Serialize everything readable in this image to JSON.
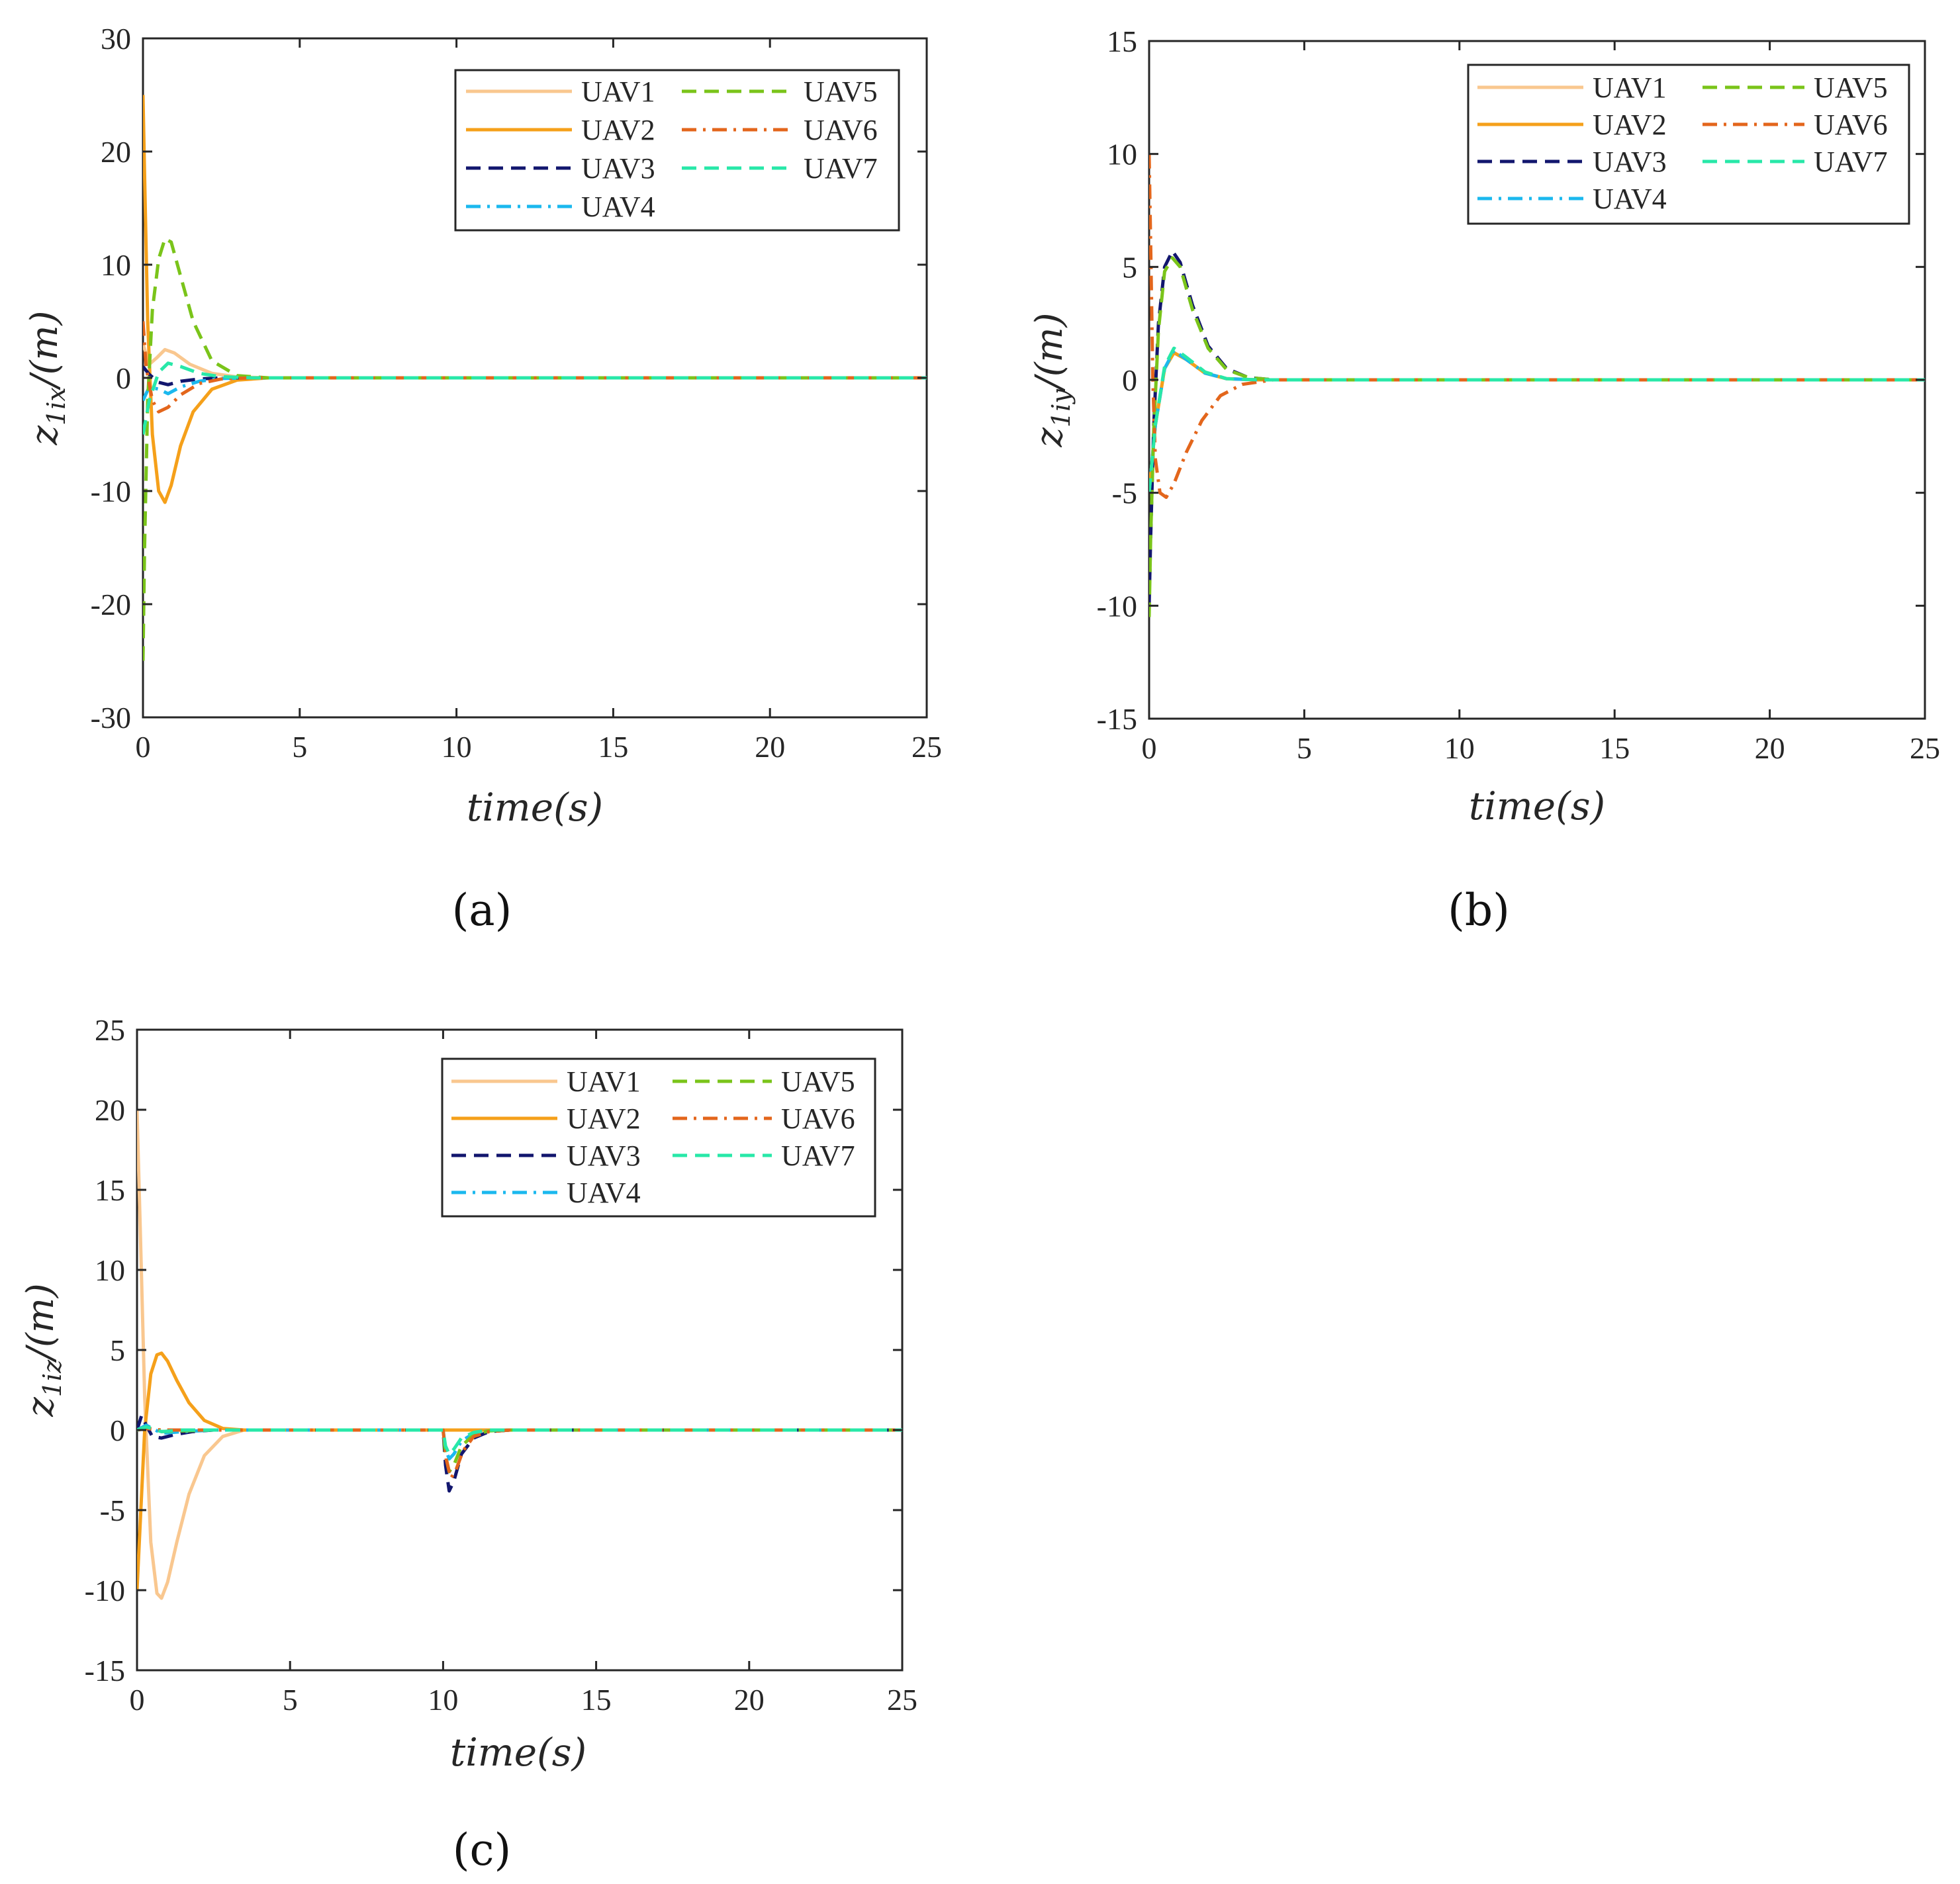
{
  "legend_entries": [
    "UAV1",
    "UAV2",
    "UAV3",
    "UAV4",
    "UAV5",
    "UAV6",
    "UAV7"
  ],
  "series_styles": [
    {
      "name": "UAV1",
      "color": "#f9c78f",
      "dash": "solid"
    },
    {
      "name": "UAV2",
      "color": "#f5a01a",
      "dash": "solid"
    },
    {
      "name": "UAV3",
      "color": "#12166e",
      "dash": "dash"
    },
    {
      "name": "UAV4",
      "color": "#1bb8ee",
      "dash": "dashdot"
    },
    {
      "name": "UAV5",
      "color": "#7ac41a",
      "dash": "dash"
    },
    {
      "name": "UAV6",
      "color": "#e3661c",
      "dash": "dashdot"
    },
    {
      "name": "UAV7",
      "color": "#28e8a8",
      "dash": "dash"
    }
  ],
  "chart_data": [
    {
      "id": "a",
      "type": "line",
      "caption": "(a)",
      "xlabel": "time(s)",
      "ylabel_base": "z",
      "ylabel_sub": "1ix",
      "ylabel_tail": "/(m)",
      "xlim": [
        0,
        25
      ],
      "ylim": [
        -30,
        30
      ],
      "xticks": [
        0,
        5,
        10,
        15,
        20,
        25
      ],
      "yticks": [
        -30,
        -20,
        -10,
        0,
        10,
        20,
        30
      ],
      "legend_position": "top-right",
      "grid": false,
      "series": [
        {
          "name": "UAV1",
          "x": [
            0,
            0.2,
            0.45,
            0.7,
            1.0,
            1.5,
            2.2,
            3.0,
            4.0,
            25
          ],
          "y": [
            3,
            1.2,
            1.8,
            2.5,
            2.2,
            1.2,
            0.4,
            0.08,
            0,
            0
          ]
        },
        {
          "name": "UAV2",
          "x": [
            0,
            0.05,
            0.15,
            0.3,
            0.5,
            0.7,
            0.9,
            1.2,
            1.6,
            2.2,
            3.0,
            4.0,
            25
          ],
          "y": [
            25,
            18,
            5,
            -5,
            -10,
            -11,
            -9.5,
            -6,
            -3,
            -1,
            -0.2,
            0,
            0
          ]
        },
        {
          "name": "UAV3",
          "x": [
            0,
            0.2,
            0.5,
            0.8,
            1.2,
            1.8,
            2.5,
            3.5,
            25
          ],
          "y": [
            1,
            0.3,
            -0.4,
            -0.6,
            -0.3,
            -0.1,
            0,
            0,
            0
          ]
        },
        {
          "name": "UAV4",
          "x": [
            0,
            0.2,
            0.5,
            0.8,
            1.2,
            1.8,
            2.5,
            3.5,
            25
          ],
          "y": [
            -2,
            -0.8,
            -1,
            -1.4,
            -0.8,
            -0.3,
            -0.05,
            0,
            0
          ]
        },
        {
          "name": "UAV5",
          "x": [
            0,
            0.05,
            0.15,
            0.3,
            0.5,
            0.7,
            0.9,
            1.2,
            1.6,
            2.2,
            3.0,
            4.0,
            25
          ],
          "y": [
            -25,
            -15,
            -2,
            6,
            10.5,
            12.3,
            12,
            9,
            5,
            1.5,
            0.2,
            0,
            0
          ]
        },
        {
          "name": "UAV6",
          "x": [
            0,
            0.1,
            0.3,
            0.5,
            0.8,
            1.2,
            1.8,
            2.5,
            3.5,
            25
          ],
          "y": [
            5,
            1,
            -2,
            -3,
            -2.6,
            -1.5,
            -0.5,
            -0.1,
            0,
            0
          ]
        },
        {
          "name": "UAV7",
          "x": [
            0,
            0.2,
            0.5,
            0.8,
            1.2,
            1.8,
            2.5,
            3.5,
            25
          ],
          "y": [
            -5,
            -2,
            0.5,
            1.3,
            1.0,
            0.4,
            0.1,
            0,
            0
          ]
        }
      ]
    },
    {
      "id": "b",
      "type": "line",
      "caption": "(b)",
      "xlabel": "time(s)",
      "ylabel_base": "z",
      "ylabel_sub": "1iy",
      "ylabel_tail": "/(m)",
      "xlim": [
        0,
        25
      ],
      "ylim": [
        -15,
        15
      ],
      "xticks": [
        0,
        5,
        10,
        15,
        20,
        25
      ],
      "yticks": [
        -15,
        -10,
        -5,
        0,
        5,
        10,
        15
      ],
      "legend_position": "top-right",
      "grid": false,
      "series": [
        {
          "name": "UAV1",
          "x": [
            0,
            0.2,
            0.5,
            0.8,
            1.2,
            1.8,
            2.5,
            3.5,
            25
          ],
          "y": [
            -5,
            -2,
            0.5,
            1.2,
            0.9,
            0.3,
            0.05,
            0,
            0
          ]
        },
        {
          "name": "UAV2",
          "x": [
            0,
            0.2,
            0.5,
            0.8,
            1.2,
            1.8,
            2.5,
            3.5,
            25
          ],
          "y": [
            -5,
            -2,
            0.5,
            1.2,
            0.9,
            0.3,
            0.05,
            0,
            0
          ]
        },
        {
          "name": "UAV3",
          "x": [
            0,
            0.05,
            0.15,
            0.3,
            0.5,
            0.75,
            1.0,
            1.4,
            1.9,
            2.5,
            3.2,
            4.0,
            25
          ],
          "y": [
            -10,
            -7,
            -2,
            2.5,
            5,
            5.7,
            5.2,
            3.3,
            1.5,
            0.5,
            0.1,
            0,
            0
          ]
        },
        {
          "name": "UAV4",
          "x": [
            0,
            0.2,
            0.5,
            0.8,
            1.2,
            1.8,
            2.5,
            3.5,
            25
          ],
          "y": [
            -5,
            -2,
            0.5,
            1.3,
            0.9,
            0.3,
            0.05,
            0,
            0
          ]
        },
        {
          "name": "UAV5",
          "x": [
            0,
            0.05,
            0.15,
            0.3,
            0.5,
            0.75,
            1.0,
            1.4,
            1.9,
            2.5,
            3.2,
            4.0,
            25
          ],
          "y": [
            -10.5,
            -7,
            -2.2,
            2.2,
            4.8,
            5.4,
            5.0,
            3.1,
            1.4,
            0.45,
            0.1,
            0,
            0
          ]
        },
        {
          "name": "UAV6",
          "x": [
            0,
            0.05,
            0.12,
            0.2,
            0.35,
            0.55,
            0.8,
            1.2,
            1.7,
            2.3,
            3.0,
            4.0,
            25
          ],
          "y": [
            10,
            6,
            0,
            -3.5,
            -5,
            -5.2,
            -4.6,
            -3.2,
            -1.8,
            -0.7,
            -0.2,
            0,
            0
          ]
        },
        {
          "name": "UAV7",
          "x": [
            0,
            0.2,
            0.5,
            0.8,
            1.2,
            1.8,
            2.5,
            3.5,
            25
          ],
          "y": [
            -5,
            -2,
            0.6,
            1.4,
            1.0,
            0.35,
            0.05,
            0,
            0
          ]
        }
      ]
    },
    {
      "id": "c",
      "type": "line",
      "caption": "(c)",
      "xlabel": "time(s)",
      "ylabel_base": "z",
      "ylabel_sub": "1iz",
      "ylabel_tail": "/(m)",
      "xlim": [
        0,
        25
      ],
      "ylim": [
        -15,
        25
      ],
      "xticks": [
        0,
        5,
        10,
        15,
        20,
        25
      ],
      "yticks": [
        -15,
        -10,
        -5,
        0,
        5,
        10,
        15,
        20,
        25
      ],
      "legend_position": "top-right",
      "grid": false,
      "series": [
        {
          "name": "UAV1",
          "x": [
            0,
            0.1,
            0.25,
            0.45,
            0.65,
            0.8,
            1.0,
            1.3,
            1.7,
            2.2,
            2.8,
            3.5,
            25
          ],
          "y": [
            20,
            13,
            2,
            -7,
            -10.2,
            -10.5,
            -9.5,
            -7,
            -4,
            -1.6,
            -0.4,
            0,
            0
          ]
        },
        {
          "name": "UAV2",
          "x": [
            0,
            0.1,
            0.25,
            0.45,
            0.65,
            0.8,
            1.0,
            1.3,
            1.7,
            2.2,
            2.8,
            3.5,
            25
          ],
          "y": [
            -10,
            -6,
            0,
            3.5,
            4.7,
            4.8,
            4.3,
            3.1,
            1.7,
            0.6,
            0.1,
            0,
            0
          ]
        },
        {
          "name": "UAV3",
          "x": [
            0,
            0.15,
            0.3,
            0.5,
            0.8,
            1.2,
            1.8,
            2.5,
            10.0,
            10.08,
            10.2,
            10.35,
            10.6,
            11.0,
            11.5,
            12.2,
            25
          ],
          "y": [
            0,
            0.9,
            0.3,
            -0.4,
            -0.5,
            -0.3,
            -0.1,
            0,
            0,
            -2.2,
            -3.8,
            -3.2,
            -1.5,
            -0.5,
            -0.1,
            0,
            0
          ]
        },
        {
          "name": "UAV4",
          "x": [
            0,
            0.3,
            0.8,
            1.5,
            2.5,
            10.0,
            10.08,
            10.2,
            10.35,
            10.6,
            11.0,
            11.5,
            12.2,
            25
          ],
          "y": [
            0,
            0.3,
            -0.2,
            -0.1,
            0,
            0,
            -1.2,
            -1.8,
            -1.5,
            -0.7,
            -0.2,
            -0.05,
            0,
            0
          ]
        },
        {
          "name": "UAV5",
          "x": [
            0,
            0.3,
            0.8,
            1.5,
            2.5,
            10.0,
            10.08,
            10.2,
            10.35,
            10.6,
            11.0,
            11.5,
            12.2,
            25
          ],
          "y": [
            0,
            0.2,
            -0.1,
            -0.05,
            0,
            0,
            -1.6,
            -2.6,
            -2.2,
            -1.0,
            -0.3,
            -0.05,
            0,
            0
          ]
        },
        {
          "name": "UAV6",
          "x": [
            0,
            0.3,
            0.8,
            1.5,
            2.5,
            10.0,
            10.1,
            10.25,
            10.4,
            10.65,
            11.0,
            11.5,
            12.2,
            25
          ],
          "y": [
            0,
            0.1,
            0,
            0,
            0,
            0,
            -1.8,
            -3.0,
            -2.6,
            -1.3,
            -0.4,
            -0.1,
            0,
            0
          ]
        },
        {
          "name": "UAV7",
          "x": [
            0,
            0.3,
            0.8,
            1.5,
            2.5,
            10.0,
            10.08,
            10.2,
            10.35,
            10.6,
            11.0,
            11.5,
            12.2,
            25
          ],
          "y": [
            0,
            0.2,
            -0.1,
            0,
            0,
            0,
            -1.0,
            -1.5,
            -1.2,
            -0.5,
            -0.15,
            0,
            0,
            0
          ]
        }
      ]
    }
  ]
}
